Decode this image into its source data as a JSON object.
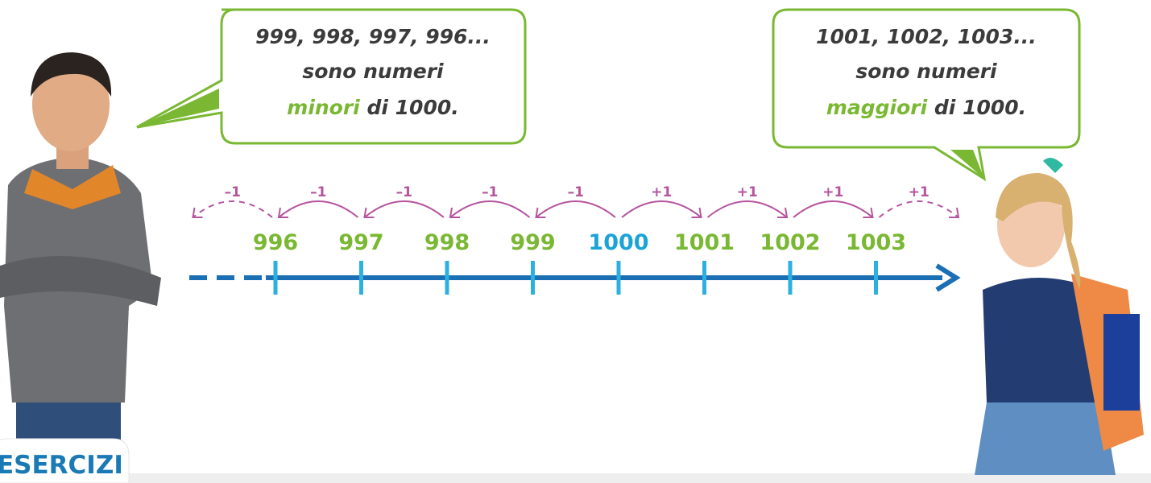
{
  "bubble_left": {
    "lines": [
      "999, 998, 997, 996...",
      "sono numeri"
    ],
    "highlight": "minori",
    "tail": "di 1000."
  },
  "bubble_right": {
    "lines": [
      "1001, 1002, 1003...",
      "sono numeri"
    ],
    "highlight": "maggiori",
    "tail": "di 1000."
  },
  "number_line": {
    "labels": [
      "996",
      "997",
      "998",
      "999",
      "1000",
      "1001",
      "1002",
      "1003"
    ],
    "steps": [
      "–1",
      "–1",
      "–1",
      "–1",
      "–1",
      "+1",
      "+1",
      "+1",
      "+1"
    ]
  },
  "footer": "ESERCIZI"
}
